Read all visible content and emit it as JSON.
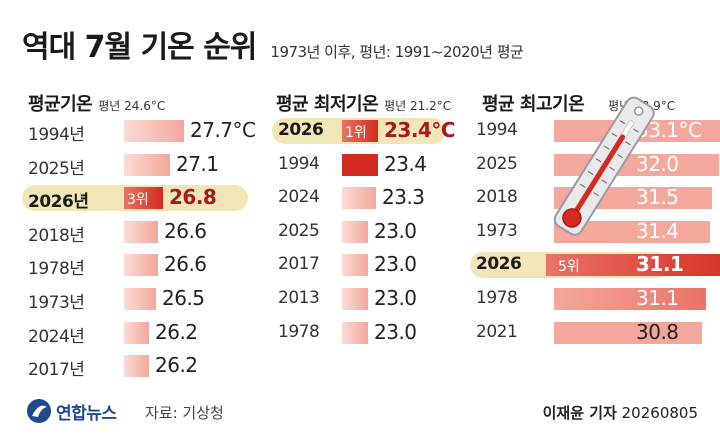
{
  "header": {
    "title": "역대 7월 기온 순위",
    "subtitle": "1973년 이후, 평년: 1991~2020년 평균"
  },
  "colors": {
    "bar_light": "#f4a79c",
    "bar_mid": "#ea7466",
    "bar_dark": "#d42a1f",
    "highlight_bg": "#f1e6b5",
    "hot_text": "#a8191c",
    "logo_blue": "#1d4b8f"
  },
  "chart_data": [
    {
      "type": "bar",
      "title": "평균기온",
      "avg_label": "평년 24.6°C",
      "categories": [
        "1994년",
        "2025년",
        "2026년",
        "2018년",
        "1978년",
        "1973년",
        "2024년",
        "2017년"
      ],
      "values": [
        27.7,
        27.1,
        26.8,
        26.6,
        26.6,
        26.5,
        26.2,
        26.2
      ],
      "value_labels": [
        "27.7°C",
        "27.1",
        "26.8",
        "26.6",
        "26.6",
        "26.5",
        "26.2",
        "26.2"
      ],
      "highlight": {
        "index": 2,
        "rank": "3위"
      }
    },
    {
      "type": "bar",
      "title": "평균 최저기온",
      "avg_label": "평년 21.2°C",
      "categories": [
        "2026",
        "1994",
        "2024",
        "2025",
        "2017",
        "2013",
        "1978"
      ],
      "values": [
        23.4,
        23.4,
        23.3,
        23.0,
        23.0,
        23.0,
        23.0
      ],
      "value_labels": [
        "23.4°C",
        "23.4",
        "23.3",
        "23.0",
        "23.0",
        "23.0",
        "23.0"
      ],
      "highlight": {
        "index": 0,
        "rank": "1위"
      }
    },
    {
      "type": "bar",
      "title": "평균 최고기온",
      "avg_label": "평년 28.9°C",
      "categories": [
        "1994",
        "2025",
        "2018",
        "1973",
        "2026",
        "1978",
        "2021"
      ],
      "values": [
        33.1,
        32.0,
        31.5,
        31.4,
        31.1,
        31.1,
        30.8
      ],
      "value_labels": [
        "33.1°C",
        "32.0",
        "31.5",
        "31.4",
        "31.1",
        "31.1",
        "30.8"
      ],
      "highlight": {
        "index": 4,
        "rank": "5위"
      }
    }
  ],
  "footer": {
    "logo_text": "연합뉴스",
    "source": "자료: 기상청",
    "credit_name": "이재윤 기자",
    "credit_date": "20260805"
  }
}
